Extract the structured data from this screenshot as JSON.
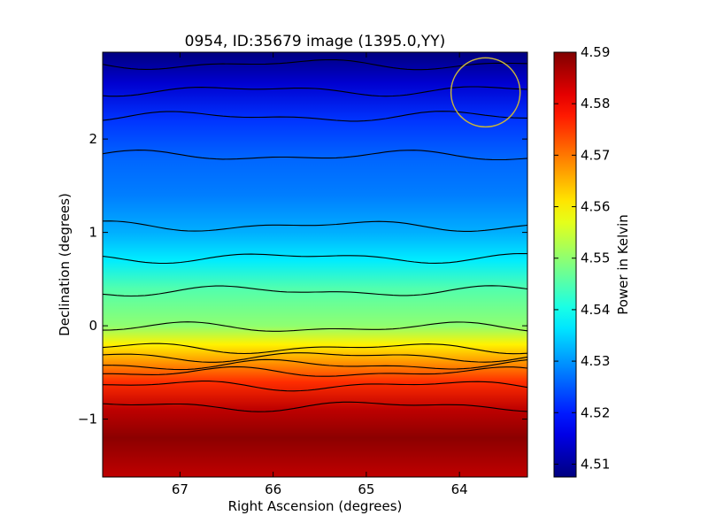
{
  "chart_data": {
    "type": "heatmap",
    "title": "0954, ID:35679 image (1395.0,YY)",
    "xlabel": "Right Ascension (degrees)",
    "ylabel": "Declination (degrees)",
    "xlim": [
      67.83,
      63.27
    ],
    "ylim": [
      -1.62,
      2.93
    ],
    "x_ticks": [
      67,
      66,
      65,
      64
    ],
    "y_ticks": [
      -1,
      0,
      1,
      2
    ],
    "grid": false,
    "colorbar": {
      "label": "Power in Kelvin",
      "colormap": "jet",
      "range": [
        4.5075,
        4.59
      ],
      "ticks": [
        4.51,
        4.52,
        4.53,
        4.54,
        4.55,
        4.56,
        4.57,
        4.58,
        4.59
      ],
      "tick_labels": [
        "4.51",
        "4.52",
        "4.53",
        "4.54",
        "4.55",
        "4.56",
        "4.57",
        "4.58",
        "4.59"
      ]
    },
    "dec_profile": {
      "dec": [
        2.9,
        2.6,
        2.2,
        1.8,
        1.4,
        1.0,
        0.7,
        0.4,
        0.0,
        -0.2,
        -0.4,
        -0.6,
        -0.9,
        -1.2,
        -1.6
      ],
      "power": [
        4.508,
        4.514,
        4.522,
        4.526,
        4.528,
        4.532,
        4.537,
        4.545,
        4.55,
        4.56,
        4.568,
        4.576,
        4.585,
        4.589,
        4.585
      ]
    },
    "contour_dec_levels": [
      2.8,
      2.52,
      2.24,
      1.82,
      1.07,
      0.73,
      0.37,
      -0.02,
      -0.24,
      -0.33,
      -0.42,
      -0.5,
      -0.64,
      -0.86
    ],
    "beam_marker": {
      "ra": 63.72,
      "dec": 2.5,
      "radius_deg": 0.37,
      "color": "#c8b43c"
    }
  }
}
